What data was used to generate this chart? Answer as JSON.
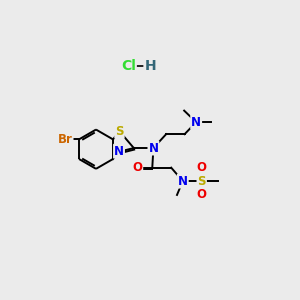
{
  "bg_color": "#ebebeb",
  "bond_color": "#000000",
  "atom_colors": {
    "N": "#0000ee",
    "O": "#ee0000",
    "S_thiazole": "#bbaa00",
    "S_sulfonyl": "#bbaa00",
    "Br": "#cc6600",
    "Cl": "#33dd33",
    "H_hcl": "#336677",
    "C": "#000000"
  },
  "lw": 1.4,
  "fs": 8.5,
  "xlim": [
    0,
    10
  ],
  "ylim": [
    0,
    10
  ]
}
